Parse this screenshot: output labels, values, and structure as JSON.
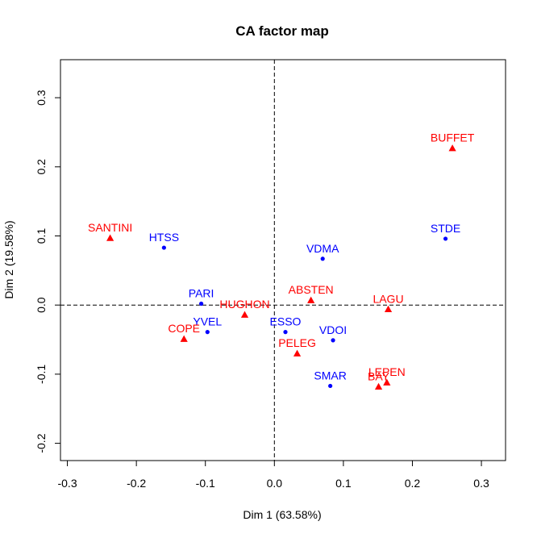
{
  "chart_data": {
    "type": "scatter",
    "title": "CA factor map",
    "xlabel": "Dim 1 (63.58%)",
    "ylabel": "Dim 2 (19.58%)",
    "xlim": [
      -0.31,
      0.335
    ],
    "ylim": [
      -0.225,
      0.355
    ],
    "xticks": [
      -0.3,
      -0.2,
      -0.1,
      0.0,
      0.1,
      0.2,
      0.3
    ],
    "xtick_labels": [
      "-0.3",
      "-0.2",
      "-0.1",
      "0.0",
      "0.1",
      "0.2",
      "0.3"
    ],
    "yticks": [
      -0.2,
      -0.1,
      0.0,
      0.1,
      0.2,
      0.3
    ],
    "ytick_labels": [
      "-0.2",
      "-0.1",
      "0.0",
      "0.1",
      "0.2",
      "0.3"
    ],
    "reference_lines": {
      "x": 0,
      "y": 0,
      "style": "dashed"
    },
    "grid": false,
    "series": [
      {
        "marker": "circle",
        "color": "#0000ff",
        "points": [
          {
            "label": "HTSS",
            "x": -0.16,
            "y": 0.083
          },
          {
            "label": "PARI",
            "x": -0.106,
            "y": 0.002
          },
          {
            "label": "YVEL",
            "x": -0.097,
            "y": -0.039
          },
          {
            "label": "ESSO",
            "x": 0.016,
            "y": -0.039
          },
          {
            "label": "VDMA",
            "x": 0.07,
            "y": 0.067
          },
          {
            "label": "VDOI",
            "x": 0.085,
            "y": -0.051
          },
          {
            "label": "SMAR",
            "x": 0.081,
            "y": -0.117
          },
          {
            "label": "STDE",
            "x": 0.248,
            "y": 0.096
          }
        ]
      },
      {
        "marker": "triangle",
        "color": "#ff0000",
        "points": [
          {
            "label": "SANTINI",
            "x": -0.238,
            "y": 0.097
          },
          {
            "label": "COPE",
            "x": -0.131,
            "y": -0.049
          },
          {
            "label": "HUGHON",
            "x": -0.043,
            "y": -0.014
          },
          {
            "label": "ABSTEN",
            "x": 0.053,
            "y": 0.007
          },
          {
            "label": "PELEG",
            "x": 0.033,
            "y": -0.07
          },
          {
            "label": "LAGU",
            "x": 0.165,
            "y": -0.006
          },
          {
            "label": "LEPEN",
            "x": 0.163,
            "y": -0.112
          },
          {
            "label": "BAY",
            "x": 0.151,
            "y": -0.118
          },
          {
            "label": "BUFFET",
            "x": 0.258,
            "y": 0.227
          }
        ]
      }
    ]
  }
}
